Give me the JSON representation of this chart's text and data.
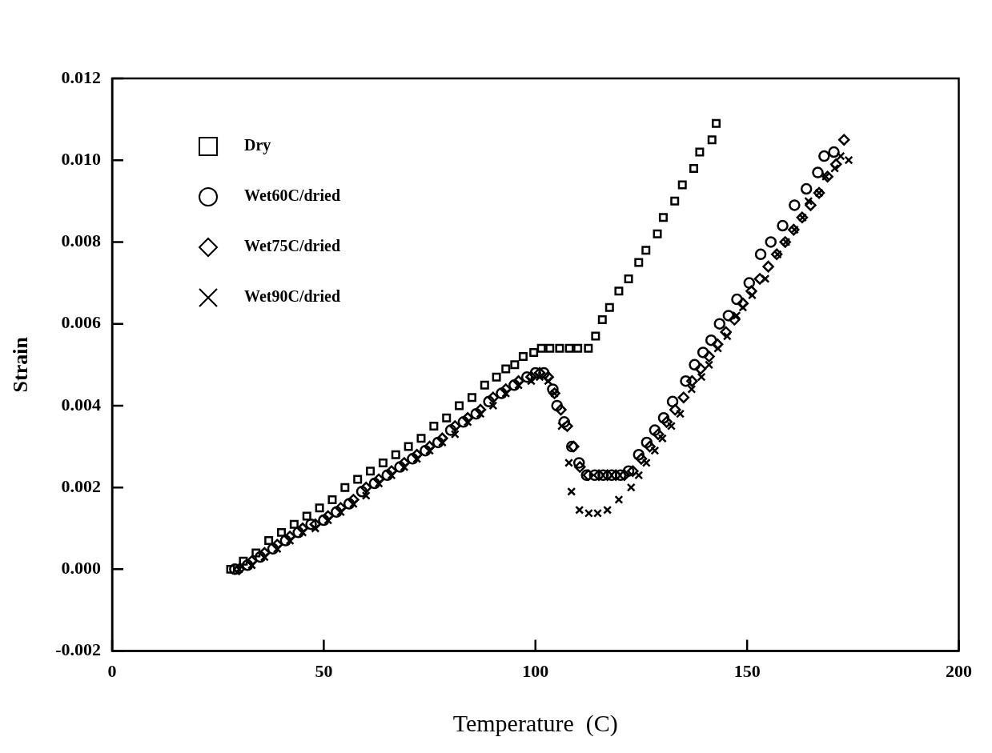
{
  "chart_data": {
    "type": "scatter",
    "xlabel": "Temperature  (C)",
    "ylabel": "Strain",
    "xlim": [
      0,
      200
    ],
    "xticks": [
      0,
      50,
      100,
      150,
      200
    ],
    "ylim": [
      -0.002,
      0.012
    ],
    "yticks": [
      {
        "value": -0.002,
        "label": "-0.002"
      },
      {
        "value": 0,
        "label": "0.000"
      },
      {
        "value": 0.002,
        "label": "0.002"
      },
      {
        "value": 0.004,
        "label": "0.004"
      },
      {
        "value": 0.006,
        "label": "0.006"
      },
      {
        "value": 0.008,
        "label": "0.008"
      },
      {
        "value": 0.01,
        "label": "0.010"
      },
      {
        "value": 0.012,
        "label": "0.012"
      }
    ],
    "grid": false,
    "legend": "top left",
    "series": [
      {
        "name": "Dry",
        "color": "#000000",
        "marker": "square",
        "x": [
          28,
          31,
          34,
          37,
          40,
          43,
          46,
          49,
          52,
          55,
          58,
          61,
          64,
          67,
          70,
          73,
          76,
          79,
          82,
          85,
          88,
          90.8,
          93,
          95.1,
          97.1,
          99.6,
          101.4,
          103.4,
          105.7,
          108,
          110,
          112.5,
          114.2,
          115.8,
          117.5,
          119.7,
          122,
          124.4,
          126.1,
          128.8,
          130.2,
          132.9,
          134.7,
          137.4,
          138.8,
          141.7,
          142.7
        ],
        "values": [
          0.0,
          0.0002,
          0.0004,
          0.0007,
          0.0009,
          0.0011,
          0.0013,
          0.0015,
          0.0017,
          0.002,
          0.0022,
          0.0024,
          0.0026,
          0.0028,
          0.003,
          0.0032,
          0.0035,
          0.0037,
          0.004,
          0.0042,
          0.0045,
          0.0047,
          0.0049,
          0.005,
          0.0052,
          0.0053,
          0.0054,
          0.0054,
          0.0054,
          0.0054,
          0.0054,
          0.0054,
          0.0057,
          0.0061,
          0.0064,
          0.0068,
          0.0071,
          0.0075,
          0.0078,
          0.0082,
          0.0086,
          0.009,
          0.0094,
          0.0098,
          0.0102,
          0.0105,
          0.0109
        ]
      },
      {
        "name": "Wet60C/dried",
        "color": "#000000",
        "marker": "circle",
        "x": [
          29,
          32,
          35,
          38,
          41,
          44,
          47,
          50,
          53,
          56,
          59,
          62,
          65,
          68,
          71,
          74,
          77,
          80,
          83,
          86,
          89,
          92,
          95,
          98,
          100,
          102,
          104.1,
          105.1,
          106.8,
          108.6,
          110.3,
          112.1,
          114,
          116,
          118,
          120.1,
          122,
          124.4,
          126.3,
          128.2,
          130.3,
          132.4,
          135.5,
          137.6,
          139.6,
          141.5,
          143.5,
          145.6,
          147.6,
          150.5,
          153.2,
          155.6,
          158.4,
          161.2,
          164,
          166.7,
          168.2,
          170.5
        ],
        "values": [
          0.0,
          0.0001,
          0.0003,
          0.0005,
          0.0007,
          0.0009,
          0.0011,
          0.0012,
          0.0014,
          0.0016,
          0.0019,
          0.0021,
          0.0023,
          0.0025,
          0.0027,
          0.0029,
          0.0031,
          0.0034,
          0.0036,
          0.0038,
          0.0041,
          0.0043,
          0.0045,
          0.0047,
          0.0048,
          0.0048,
          0.0044,
          0.004,
          0.0036,
          0.003,
          0.0026,
          0.0023,
          0.0023,
          0.0023,
          0.0023,
          0.0023,
          0.0024,
          0.0028,
          0.0031,
          0.0034,
          0.0037,
          0.0041,
          0.0046,
          0.005,
          0.0053,
          0.0056,
          0.006,
          0.0062,
          0.0066,
          0.007,
          0.0077,
          0.008,
          0.0084,
          0.0089,
          0.0093,
          0.0097,
          0.0101,
          0.0102
        ]
      },
      {
        "name": "Wet75C/dried",
        "color": "#000000",
        "marker": "diamond",
        "x": [
          30,
          33,
          36,
          39,
          42,
          45,
          48,
          51,
          54,
          57,
          60,
          63,
          66,
          69,
          72,
          75,
          78,
          81,
          84,
          87,
          90,
          93,
          96,
          99,
          101,
          103,
          104.5,
          106,
          107.5,
          109,
          110.5,
          112.5,
          115,
          117,
          119,
          121,
          123,
          125,
          127,
          129,
          131,
          133,
          135,
          137,
          139,
          141,
          143,
          145,
          147,
          149,
          151,
          153,
          155,
          157,
          159,
          161,
          163,
          165,
          167,
          169,
          171,
          172.9
        ],
        "values": [
          0.0,
          0.0002,
          0.0004,
          0.0006,
          0.0008,
          0.001,
          0.0011,
          0.0013,
          0.0015,
          0.0017,
          0.002,
          0.0022,
          0.0024,
          0.0026,
          0.0028,
          0.003,
          0.0032,
          0.0035,
          0.0037,
          0.0039,
          0.0042,
          0.0044,
          0.0046,
          0.0047,
          0.0048,
          0.0047,
          0.0043,
          0.0039,
          0.0035,
          0.003,
          0.0025,
          0.0023,
          0.0023,
          0.0023,
          0.0023,
          0.0023,
          0.0024,
          0.0027,
          0.003,
          0.0033,
          0.0036,
          0.0039,
          0.0042,
          0.0046,
          0.0049,
          0.0052,
          0.0055,
          0.0058,
          0.0061,
          0.0065,
          0.0068,
          0.0071,
          0.0074,
          0.0077,
          0.008,
          0.0083,
          0.0086,
          0.0089,
          0.0092,
          0.0096,
          0.0099,
          0.0105
        ]
      },
      {
        "name": "Wet90C/dried",
        "color": "#000000",
        "marker": "cross",
        "x": [
          30,
          33,
          36,
          39,
          42,
          45,
          48,
          51,
          54,
          57,
          60,
          63,
          66,
          69,
          72,
          75,
          78,
          81,
          84,
          87,
          90,
          93,
          96,
          99,
          101,
          103,
          104.5,
          106.2,
          107.9,
          108.5,
          110.4,
          112.6,
          114.7,
          117,
          119.7,
          122.6,
          124.4,
          126.2,
          128.2,
          130,
          132.1,
          134.2,
          136.9,
          139.2,
          141,
          143.1,
          145.3,
          147.5,
          149,
          151.2,
          154.3,
          157.2,
          159.2,
          161.2,
          163.1,
          164.5,
          167,
          168.6,
          170.7,
          172.1,
          174
        ],
        "values": [
          0.0,
          0.0001,
          0.0003,
          0.0005,
          0.0007,
          0.0009,
          0.001,
          0.0012,
          0.0014,
          0.0016,
          0.0018,
          0.0021,
          0.0023,
          0.0025,
          0.0027,
          0.0029,
          0.0031,
          0.0033,
          0.0036,
          0.0038,
          0.004,
          0.0043,
          0.0045,
          0.0046,
          0.0047,
          0.0046,
          0.0043,
          0.0035,
          0.0026,
          0.0019,
          0.00145,
          0.00137,
          0.00137,
          0.00145,
          0.0017,
          0.002,
          0.0023,
          0.0026,
          0.0029,
          0.0032,
          0.0035,
          0.0038,
          0.0044,
          0.0047,
          0.005,
          0.0054,
          0.0057,
          0.0062,
          0.0064,
          0.0067,
          0.0071,
          0.0077,
          0.008,
          0.0083,
          0.0086,
          0.009,
          0.0092,
          0.0096,
          0.0098,
          0.0101,
          0.01
        ]
      }
    ]
  }
}
